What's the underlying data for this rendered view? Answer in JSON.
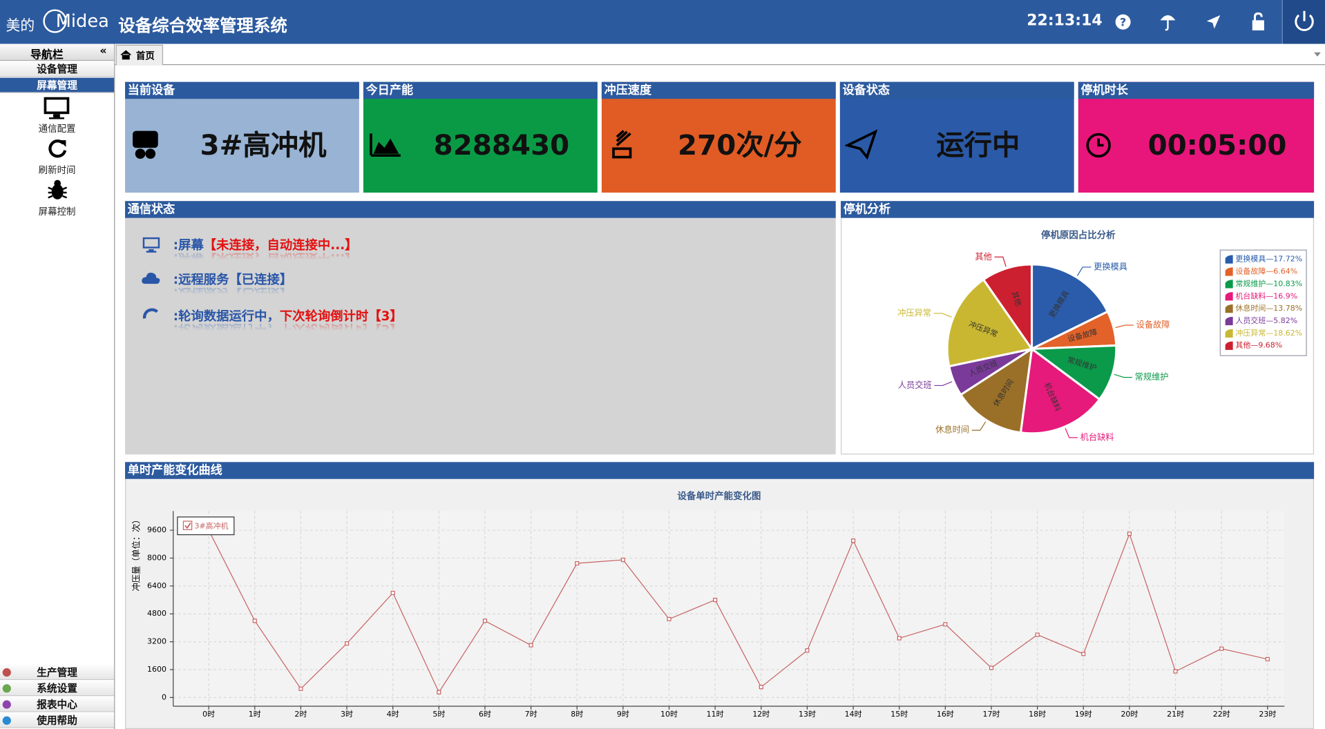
{
  "header": {
    "brand": "美的",
    "logo": "Midea",
    "title": "设备综合效率管理系统",
    "time": "22:13:14"
  },
  "nav": {
    "title": "导航栏",
    "collapse": "«",
    "items": [
      "设备管理",
      "屏幕管理"
    ],
    "selected": 1,
    "sub_items": [
      "通信配置",
      "刷新时间",
      "屏幕控制"
    ],
    "bottom_items": [
      "生产管理",
      "系统设置",
      "报表中心",
      "使用帮助"
    ]
  },
  "tabs": [
    "首页"
  ],
  "cards": [
    {
      "title": "当前设备",
      "value": "3#高冲机",
      "color": "#98b3d3"
    },
    {
      "title": "今日产能",
      "value": 8288430,
      "color": "#0a9a46"
    },
    {
      "title": "冲压速度",
      "value": "270次/分",
      "color": "#e05c24"
    },
    {
      "title": "设备状态",
      "value": "运行中",
      "color": "#2b5aa8"
    },
    {
      "title": "停机时长",
      "value": "00:05:00",
      "color": "#e8167a"
    }
  ],
  "comm": {
    "title": "通信状态",
    "lines": [
      [
        ":屏幕",
        "【未连接，自动连接中...】"
      ],
      [
        ":远程服务【已连接】"
      ],
      [
        ":轮询数据运行中，",
        "下次轮询倒计时【3】"
      ]
    ]
  },
  "pie_panel": {
    "title": "停机分析"
  },
  "line_panel": {
    "title": "单时产能变化曲线"
  },
  "chart_data": [
    {
      "type": "pie",
      "title": "停机原因占比分析",
      "categories": [
        "更换模具",
        "设备故障",
        "常规维护",
        "机台缺料",
        "休息时间",
        "人员交班",
        "冲压异常",
        "其他"
      ],
      "values": [
        17.72,
        6.64,
        10.83,
        16.9,
        13.78,
        5.82,
        18.62,
        9.68
      ],
      "legend_labels": [
        "更换模具—17.72%",
        "设备故障—6.64%",
        "常规维护—10.83%",
        "机台缺料—16.9%",
        "休息时间—13.78%",
        "人员交班—5.82%",
        "冲压异常—18.62%",
        "其他—9.68%"
      ],
      "colors": [
        "#2a5cab",
        "#e2622a",
        "#0b9a4a",
        "#e61a7a",
        "#9a7028",
        "#7a3a9a",
        "#c9b732",
        "#cc2030"
      ],
      "legend": "right"
    },
    {
      "type": "line",
      "title": "设备单时产能变化图",
      "y_label": "冲压量（单位：次）",
      "categories": [
        "0时",
        "1时",
        "2时",
        "3时",
        "4时",
        "5时",
        "6时",
        "7时",
        "8时",
        "9时",
        "10时",
        "11时",
        "12时",
        "13时",
        "14时",
        "15时",
        "16时",
        "17时",
        "18时",
        "19时",
        "20时",
        "21时",
        "22时",
        "23时"
      ],
      "series": [
        {
          "name": "3#高冲机",
          "color": "#c86464",
          "values": [
            9600,
            4400,
            500,
            3100,
            6000,
            300,
            4400,
            3000,
            7700,
            7900,
            4500,
            5600,
            600,
            2700,
            9000,
            3400,
            4200,
            1700,
            3600,
            2500,
            9400,
            1500,
            2800,
            2200
          ]
        }
      ],
      "ylim": [
        -500,
        10700
      ],
      "yticks": [
        0,
        1600,
        3200,
        4800,
        6400,
        8000,
        9600
      ],
      "grid": true,
      "legend": "top-left"
    }
  ]
}
